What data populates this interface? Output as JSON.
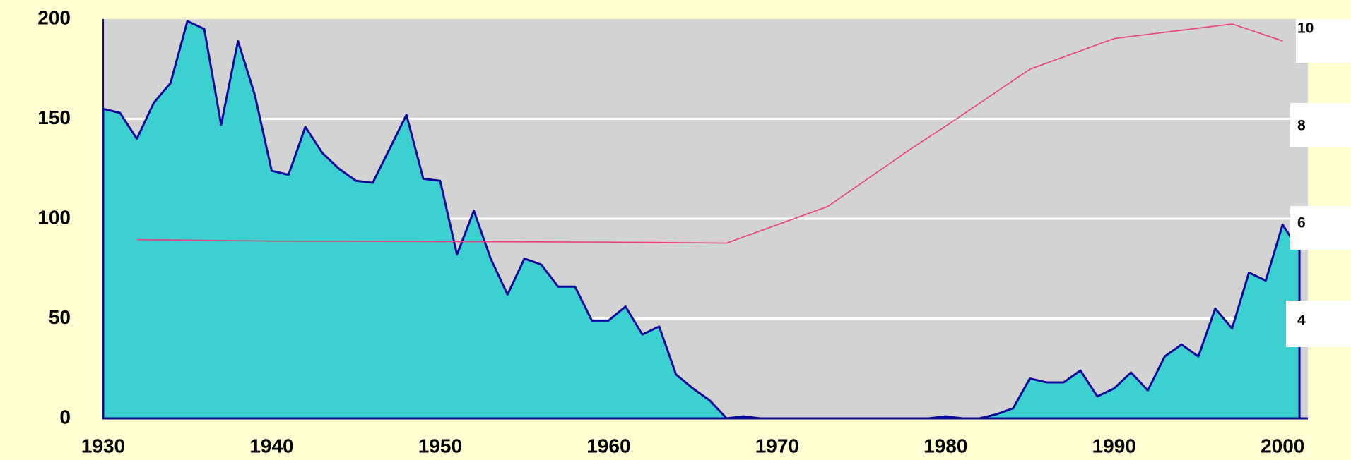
{
  "chart_data": {
    "type": "area",
    "xlim": [
      1930,
      2001.5
    ],
    "xticks": [
      1930,
      1940,
      1950,
      1960,
      1970,
      1980,
      1990,
      2000
    ],
    "ylim": [
      0,
      200
    ],
    "yticks": [
      0,
      50,
      100,
      150,
      200
    ],
    "y2lim": [
      2,
      10.2
    ],
    "y2ticks": [
      4,
      6,
      8,
      10
    ],
    "grid": true,
    "series": [
      {
        "color": "#3cd0d0",
        "x": [
          1930,
          1931,
          1932,
          1933,
          1934,
          1935,
          1936,
          1937,
          1938,
          1939,
          1940,
          1941,
          1942,
          1943,
          1944,
          1945,
          1946,
          1947,
          1948,
          1949,
          1950,
          1951,
          1952,
          1953,
          1954,
          1955,
          1956,
          1957,
          1958,
          1959,
          1960,
          1961,
          1962,
          1963,
          1964,
          1965,
          1966,
          1967,
          1968,
          1969,
          1970,
          1971,
          1972,
          1973,
          1974,
          1975,
          1976,
          1977,
          1978,
          1979,
          1980,
          1981,
          1982,
          1983,
          1984,
          1985,
          1986,
          1987,
          1988,
          1989,
          1990,
          1991,
          1992,
          1993,
          1994,
          1995,
          1996,
          1997,
          1998,
          1999,
          2000,
          2001
        ],
        "values": [
          155,
          153,
          140,
          158,
          168,
          199,
          195,
          147,
          189,
          162,
          124,
          122,
          146,
          133,
          125,
          119,
          118,
          135,
          152,
          120,
          119,
          82,
          104,
          80,
          62,
          80,
          77,
          66,
          66,
          49,
          49,
          56,
          42,
          46,
          22,
          15,
          9,
          0,
          1,
          0,
          0,
          0,
          0,
          0,
          0,
          0,
          0,
          0,
          0,
          0,
          1,
          0,
          0,
          2,
          5,
          20,
          18,
          18,
          24,
          11,
          15,
          23,
          14,
          31,
          37,
          31,
          55,
          45,
          73,
          69,
          97,
          84
        ]
      },
      {
        "color": "#e8407c",
        "axis": "y2",
        "x": [
          1932,
          1940,
          1950,
          1960,
          1967,
          1973,
          1978,
          1980,
          1985,
          1990,
          1997,
          2000
        ],
        "values": [
          5.67,
          5.64,
          5.63,
          5.62,
          5.6,
          6.35,
          7.55,
          8.0,
          9.17,
          9.8,
          10.1,
          9.75
        ]
      }
    ]
  }
}
